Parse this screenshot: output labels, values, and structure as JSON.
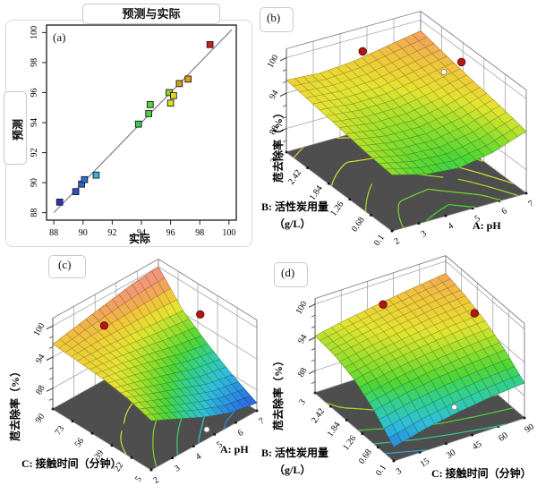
{
  "colors": {
    "background": "#ffffff",
    "floor": "#4e4e4e",
    "cage_line": "#9a9a9a",
    "corner_line": "#808080",
    "diagonal_line": "#808080",
    "design_point_red": "#b21616",
    "design_point_white": "#ffffff",
    "frame_border": "#d9d9d9",
    "colormap": [
      [
        84,
        "#2b2fd4"
      ],
      [
        86.5,
        "#2e7fe0"
      ],
      [
        88.5,
        "#2fc0d8"
      ],
      [
        90.5,
        "#34d08a"
      ],
      [
        92,
        "#4ed636"
      ],
      [
        93.8,
        "#9fe02c"
      ],
      [
        95.2,
        "#e4e432"
      ],
      [
        96.6,
        "#f0c83a"
      ],
      [
        98,
        "#f2a35c"
      ],
      [
        100,
        "#f19090"
      ]
    ]
  },
  "chart_data": [
    {
      "type": "scatter",
      "panel_label": "(a)",
      "title": "预测与实际",
      "xlabel": "实际",
      "ylabel": "预测",
      "xlim": [
        87.5,
        100.5
      ],
      "ylim": [
        87.5,
        100.5
      ],
      "xticks": [
        88,
        90,
        92,
        94,
        96,
        98,
        100
      ],
      "yticks": [
        88,
        90,
        92,
        94,
        96,
        98,
        100
      ],
      "identity_line": {
        "x1": 88,
        "y1": 88,
        "x2": 100.2,
        "y2": 100.2
      },
      "points": [
        {
          "x": 88.4,
          "y": 88.7,
          "color": "#3030c8"
        },
        {
          "x": 89.5,
          "y": 89.4,
          "color": "#2952cc"
        },
        {
          "x": 89.9,
          "y": 89.9,
          "color": "#2e64d4"
        },
        {
          "x": 90.1,
          "y": 90.2,
          "color": "#2e6fd8"
        },
        {
          "x": 90.9,
          "y": 90.5,
          "color": "#35b2d8"
        },
        {
          "x": 93.8,
          "y": 93.9,
          "color": "#3cc94a"
        },
        {
          "x": 94.5,
          "y": 94.6,
          "color": "#49cf3c"
        },
        {
          "x": 94.6,
          "y": 95.2,
          "color": "#5cd433"
        },
        {
          "x": 95.9,
          "y": 96.0,
          "color": "#9ccc22"
        },
        {
          "x": 96.0,
          "y": 95.3,
          "color": "#d9e01f"
        },
        {
          "x": 96.2,
          "y": 95.8,
          "color": "#e0da22"
        },
        {
          "x": 96.6,
          "y": 96.6,
          "color": "#c9a31f"
        },
        {
          "x": 97.2,
          "y": 96.9,
          "color": "#e8941f"
        },
        {
          "x": 98.7,
          "y": 99.2,
          "color": "#cc1f1f"
        }
      ]
    },
    {
      "type": "surface3d",
      "panel_label": "(b)",
      "zlabel": "苊去除率（%）",
      "zticks": [
        88,
        94,
        100
      ],
      "zrange": [
        84,
        101.5
      ],
      "x_axis": {
        "label": "A: pH",
        "ticks": [
          "2",
          "3",
          "4",
          "5",
          "6",
          "7"
        ]
      },
      "y_axis": {
        "label": "B: 活性炭用量",
        "label2": "（g/L）",
        "ticks": [
          "0.1",
          "0.68",
          "1.26",
          "1.84",
          "2.42",
          "3"
        ]
      },
      "surface_zgrid": [
        [
          93.5,
          92.0,
          91.5,
          92.5,
          94.5
        ],
        [
          94.0,
          93.0,
          92.8,
          93.8,
          95.5
        ],
        [
          94.8,
          94.0,
          94.0,
          95.0,
          96.3
        ],
        [
          95.5,
          95.0,
          95.2,
          96.2,
          97.2
        ],
        [
          96.2,
          95.8,
          96.2,
          97.2,
          98.2
        ]
      ],
      "contour_levels": [
        92,
        93,
        94,
        95,
        96
      ],
      "design_points_above": [
        {
          "u": 0.45,
          "v": 0.85,
          "z": 100.2
        },
        {
          "u": 0.95,
          "v": 0.55,
          "z": 99.2
        }
      ],
      "design_points_white": [
        {
          "u": 0.89,
          "v": 0.64,
          "on": "surface"
        }
      ]
    },
    {
      "type": "surface3d",
      "panel_label": "(c)",
      "zlabel": "苊去除率（%）",
      "zticks": [
        88,
        94,
        100
      ],
      "zrange": [
        84,
        101.5
      ],
      "x_axis": {
        "label": "A: pH",
        "ticks": [
          "2",
          "3",
          "4",
          "5",
          "6",
          "7"
        ]
      },
      "y_axis": {
        "label": "C: 接触时间（分钟）",
        "ticks": [
          "5",
          "22",
          "39",
          "56",
          "73",
          "90"
        ]
      },
      "surface_zgrid": [
        [
          93.5,
          91.0,
          88.5,
          86.5,
          85.5
        ],
        [
          95.0,
          93.0,
          91.0,
          89.0,
          88.0
        ],
        [
          95.8,
          94.8,
          93.5,
          92.0,
          91.0
        ],
        [
          96.2,
          96.0,
          95.5,
          95.0,
          94.5
        ],
        [
          96.5,
          97.5,
          98.5,
          99.5,
          100.0
        ]
      ],
      "contour_levels": [
        87,
        89,
        91,
        93,
        95
      ],
      "design_points_above": [
        {
          "u": 0.3,
          "v": 0.8,
          "z": 99.0
        },
        {
          "u": 0.93,
          "v": 0.5,
          "z": 97.5
        }
      ],
      "design_points_white": [
        {
          "u": 0.6,
          "v": 0.08,
          "on": "floor"
        }
      ]
    },
    {
      "type": "surface3d",
      "panel_label": "(d)",
      "zlabel": "苊去除率（%）",
      "zticks": [
        88,
        94,
        100
      ],
      "zrange": [
        84,
        101
      ],
      "x_axis": {
        "label": "C: 接触时间（分钟）",
        "ticks": [
          "3",
          "15",
          "30",
          "45",
          "60",
          "90"
        ]
      },
      "y_axis": {
        "label": "B: 活性炭用量",
        "label2": "（g/L）",
        "ticks": [
          "0.1",
          "0.68",
          "1.26",
          "1.84",
          "2.42",
          "3"
        ]
      },
      "surface_zgrid": [
        [
          86.5,
          88.0,
          89.0,
          89.8,
          90.3
        ],
        [
          90.0,
          91.3,
          92.2,
          92.8,
          93.2
        ],
        [
          92.5,
          93.6,
          94.4,
          95.0,
          95.4
        ],
        [
          93.8,
          94.8,
          95.6,
          96.3,
          96.8
        ],
        [
          94.3,
          95.4,
          96.3,
          97.1,
          97.8
        ]
      ],
      "contour_levels": [
        88,
        90,
        92,
        94,
        96
      ],
      "design_points_above": [
        {
          "u": 0.4,
          "v": 0.8,
          "z": 99.3
        },
        {
          "u": 0.95,
          "v": 0.55,
          "z": 96.5
        }
      ],
      "design_points_white": [
        {
          "u": 0.68,
          "v": 0.36,
          "on": "floor"
        }
      ]
    }
  ]
}
